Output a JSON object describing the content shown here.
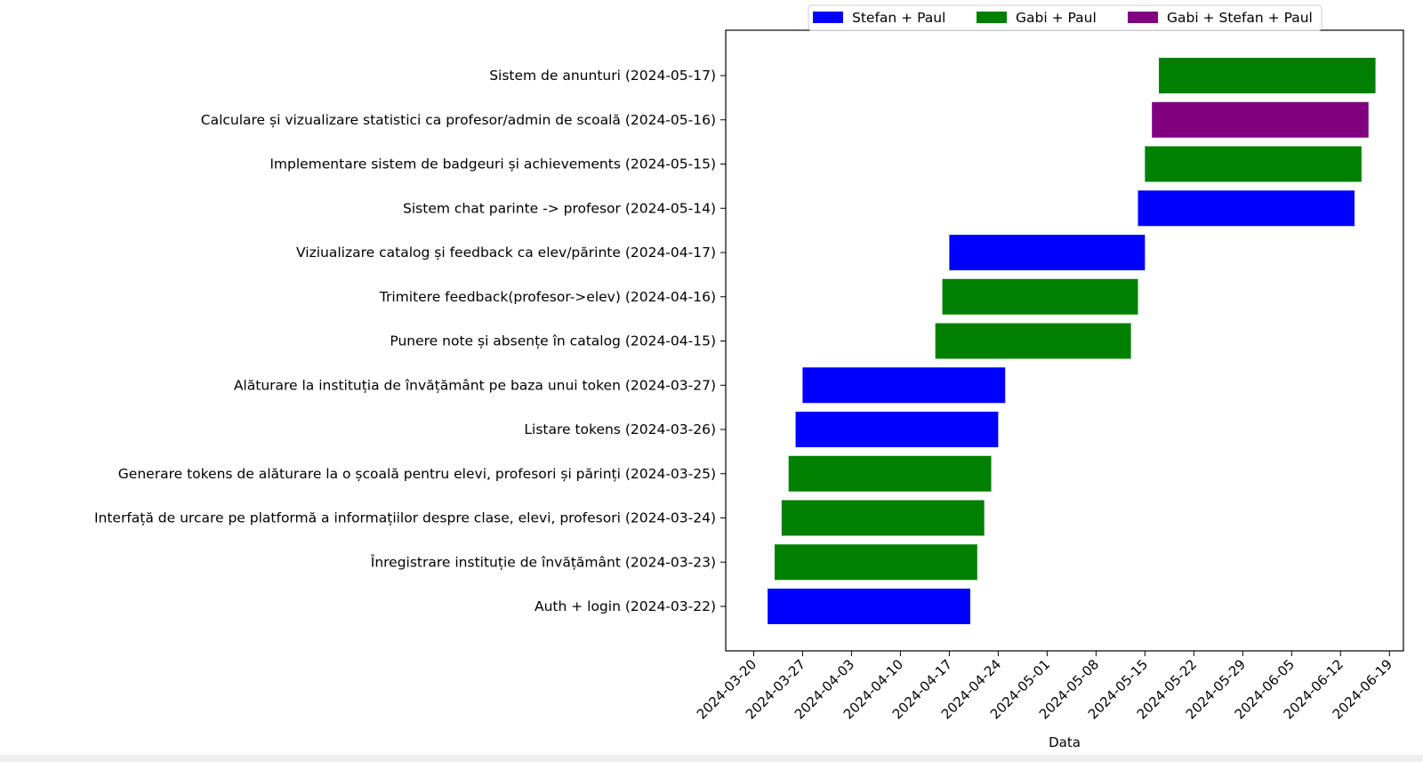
{
  "chart_data": {
    "type": "bar",
    "orientation": "horizontal",
    "title": "",
    "xlabel": "Data",
    "ylabel": "",
    "xlim": [
      "2024-03-16",
      "2024-06-21"
    ],
    "x_ticks": [
      "2024-03-20",
      "2024-03-27",
      "2024-04-03",
      "2024-04-10",
      "2024-04-17",
      "2024-04-24",
      "2024-05-01",
      "2024-05-08",
      "2024-05-15",
      "2024-05-22",
      "2024-05-29",
      "2024-06-05",
      "2024-06-12",
      "2024-06-19"
    ],
    "grid": false,
    "legend_position": "top-center",
    "series": [
      {
        "name": "Stefan + Paul",
        "color": "#0000ff"
      },
      {
        "name": "Gabi + Paul",
        "color": "#008000"
      },
      {
        "name": "Gabi + Stefan + Paul",
        "color": "#800080"
      }
    ],
    "tasks": [
      {
        "label": "Auth + login (2024-03-22)",
        "start": "2024-03-22",
        "end": "2024-04-20",
        "series": "Stefan + Paul"
      },
      {
        "label": "Înregistrare instituție de învățământ (2024-03-23)",
        "start": "2024-03-23",
        "end": "2024-04-21",
        "series": "Gabi + Paul"
      },
      {
        "label": "Interfață de urcare pe platformă a informațiilor despre clase, elevi, profesori (2024-03-24)",
        "start": "2024-03-24",
        "end": "2024-04-22",
        "series": "Gabi + Paul"
      },
      {
        "label": "Generare tokens de alăturare la o școală pentru elevi, profesori și părinți (2024-03-25)",
        "start": "2024-03-25",
        "end": "2024-04-23",
        "series": "Gabi + Paul"
      },
      {
        "label": "Listare tokens (2024-03-26)",
        "start": "2024-03-26",
        "end": "2024-04-24",
        "series": "Stefan + Paul"
      },
      {
        "label": "Alăturare la instituția de învățământ pe baza unui token (2024-03-27)",
        "start": "2024-03-27",
        "end": "2024-04-25",
        "series": "Stefan + Paul"
      },
      {
        "label": "Punere note și absențe în catalog (2024-04-15)",
        "start": "2024-04-15",
        "end": "2024-05-13",
        "series": "Gabi + Paul"
      },
      {
        "label": "Trimitere feedback(profesor->elev) (2024-04-16)",
        "start": "2024-04-16",
        "end": "2024-05-14",
        "series": "Gabi + Paul"
      },
      {
        "label": "Viziualizare catalog și feedback ca elev/părinte (2024-04-17)",
        "start": "2024-04-17",
        "end": "2024-05-15",
        "series": "Stefan + Paul"
      },
      {
        "label": "Sistem chat parinte -> profesor (2024-05-14)",
        "start": "2024-05-14",
        "end": "2024-06-14",
        "series": "Stefan + Paul"
      },
      {
        "label": "Implementare sistem de badgeuri și achievements (2024-05-15)",
        "start": "2024-05-15",
        "end": "2024-06-15",
        "series": "Gabi + Paul"
      },
      {
        "label": "Calculare și vizualizare statistici ca profesor/admin de scoală (2024-05-16)",
        "start": "2024-05-16",
        "end": "2024-06-16",
        "series": "Gabi + Stefan + Paul"
      },
      {
        "label": "Sistem de anunturi (2024-05-17)",
        "start": "2024-05-17",
        "end": "2024-06-17",
        "series": "Gabi + Paul"
      }
    ]
  }
}
